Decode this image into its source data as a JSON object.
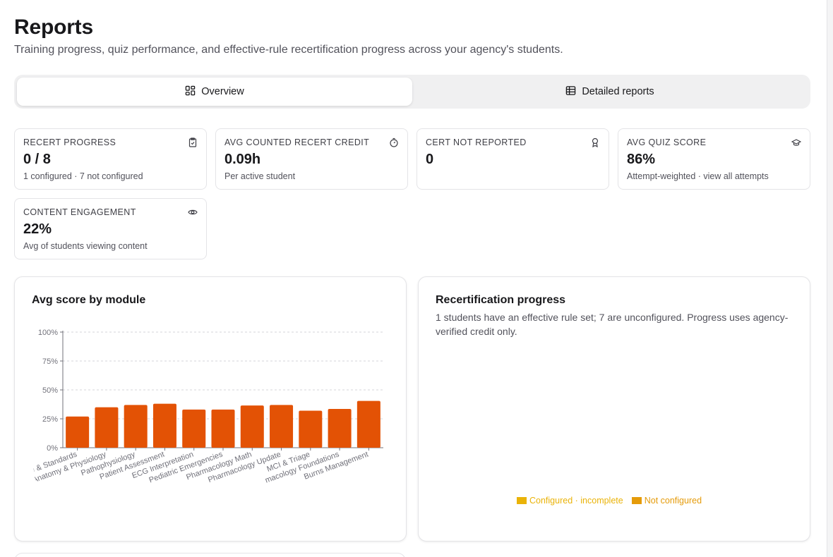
{
  "header": {
    "title": "Reports",
    "subtitle": "Training progress, quiz performance, and effective-rule recertification progress across your agency's students."
  },
  "tabs": [
    {
      "label": "Overview",
      "icon": "layout-dashboard-icon",
      "active": true
    },
    {
      "label": "Detailed reports",
      "icon": "table-icon",
      "active": false
    }
  ],
  "stats": [
    {
      "label": "RECERT PROGRESS",
      "value": "0 / 8",
      "sub": "1 configured · 7 not configured",
      "icon": "clipboard-check-icon"
    },
    {
      "label": "AVG COUNTED RECERT CREDIT",
      "value": "0.09h",
      "sub": "Per active student",
      "icon": "timer-icon"
    },
    {
      "label": "CERT NOT REPORTED",
      "value": "0",
      "sub": "",
      "icon": "award-icon"
    },
    {
      "label": "AVG QUIZ SCORE",
      "value": "86%",
      "sub": "Attempt-weighted · view all attempts",
      "icon": "graduation-cap-icon"
    },
    {
      "label": "CONTENT ENGAGEMENT",
      "value": "22%",
      "sub": "Avg of students viewing content",
      "icon": "eye-icon"
    }
  ],
  "score_panel": {
    "title": "Avg score by module"
  },
  "recert_panel": {
    "title": "Recertification progress",
    "description": "1 students have an effective rule set; 7 are unconfigured. Progress uses agency-verified credit only.",
    "legend": [
      {
        "label": "Configured · incomplete",
        "color": "#eab308"
      },
      {
        "label": "Not configured",
        "color": "#e59b0a"
      }
    ]
  },
  "colors": {
    "bar": "#e35205",
    "accent_yellow": "#eab308"
  },
  "chart_data": {
    "type": "bar",
    "title": "Avg score by module",
    "categories": [
      "m & Standards",
      "Anatomy & Physiology",
      "Pathophysiology",
      "Patient Assessment",
      "ECG Interpretation",
      "Pediatric Emergencies",
      "Pharmacology Math",
      "Pharmacology Update",
      "MCI & Triage",
      "macology Foundations",
      "Burns Management"
    ],
    "values": [
      27,
      35,
      37,
      38,
      33,
      33,
      36.5,
      37,
      32,
      33.5,
      40.5
    ],
    "yticks": [
      "0%",
      "25%",
      "50%",
      "75%",
      "100%"
    ],
    "ylim": [
      0,
      100
    ],
    "grid": true
  }
}
